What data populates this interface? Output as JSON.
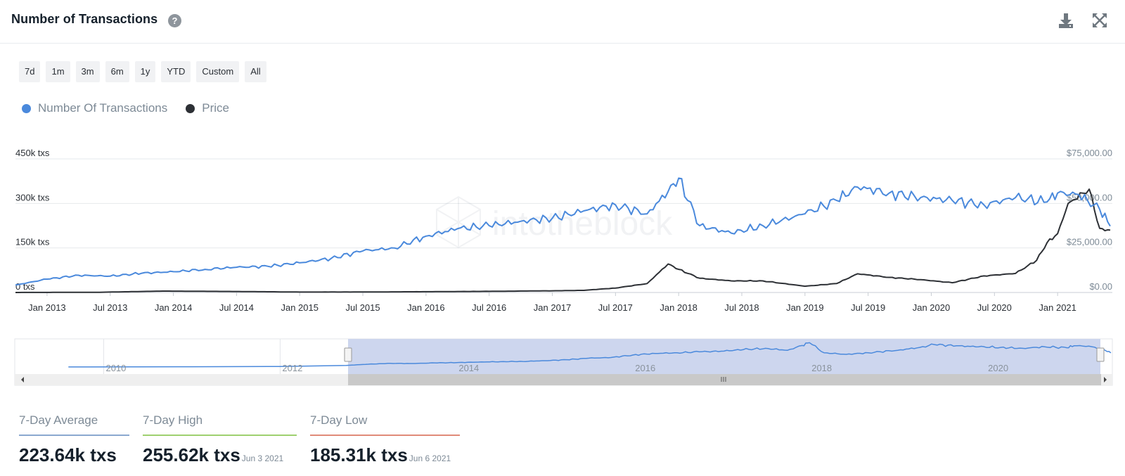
{
  "header": {
    "title": "Number of Transactions",
    "help_icon": "question-circle-icon",
    "download_icon": "download-icon",
    "expand_icon": "fullscreen-icon"
  },
  "range_buttons": [
    "7d",
    "1m",
    "3m",
    "6m",
    "1y",
    "YTD",
    "Custom",
    "All"
  ],
  "legend": [
    {
      "label": "Number Of Transactions",
      "color": "#4a89dc"
    },
    {
      "label": "Price",
      "color": "#2d3035"
    }
  ],
  "chart_data": {
    "type": "line",
    "title": "Number of Transactions",
    "x_tick_labels": [
      "Jan 2013",
      "Jul 2013",
      "Jan 2014",
      "Jul 2014",
      "Jan 2015",
      "Jul 2015",
      "Jan 2016",
      "Jul 2016",
      "Jan 2017",
      "Jul 2017",
      "Jan 2018",
      "Jul 2018",
      "Jan 2019",
      "Jul 2019",
      "Jan 2020",
      "Jul 2020",
      "Jan 2021"
    ],
    "left_axis": {
      "ticks": [
        "0 txs",
        "150k txs",
        "300k txs",
        "450k txs"
      ],
      "range": [
        0,
        450000
      ]
    },
    "right_axis": {
      "ticks": [
        "$0.00",
        "$25,000.00",
        "$50,000.00",
        "$75,000.00"
      ],
      "range": [
        0,
        75000
      ]
    },
    "grid": true,
    "legend_position": "top-left",
    "series": [
      {
        "name": "Number Of Transactions",
        "axis": "left",
        "color": "#4a89dc",
        "x": [
          "2012-10",
          "2013-01",
          "2013-04",
          "2013-07",
          "2013-10",
          "2014-01",
          "2014-04",
          "2014-07",
          "2014-10",
          "2015-01",
          "2015-04",
          "2015-07",
          "2015-10",
          "2016-01",
          "2016-04",
          "2016-07",
          "2016-10",
          "2017-01",
          "2017-04",
          "2017-07",
          "2017-10",
          "2017-12",
          "2018-01",
          "2018-03",
          "2018-06",
          "2018-09",
          "2019-01",
          "2019-04",
          "2019-06",
          "2019-09",
          "2019-12",
          "2020-03",
          "2020-06",
          "2020-09",
          "2020-12",
          "2021-01",
          "2021-03",
          "2021-05",
          "2021-06"
        ],
        "values": [
          25000,
          45000,
          58000,
          55000,
          65000,
          70000,
          78000,
          85000,
          88000,
          100000,
          115000,
          140000,
          150000,
          190000,
          215000,
          225000,
          240000,
          250000,
          275000,
          295000,
          265000,
          340000,
          385000,
          225000,
          200000,
          225000,
          265000,
          310000,
          355000,
          335000,
          320000,
          310000,
          295000,
          320000,
          305000,
          335000,
          330000,
          280000,
          223640
        ]
      },
      {
        "name": "Price",
        "axis": "right",
        "color": "#2d3035",
        "x": [
          "2012-10",
          "2013-06",
          "2013-12",
          "2014-06",
          "2015-01",
          "2015-07",
          "2016-01",
          "2016-07",
          "2017-01",
          "2017-04",
          "2017-07",
          "2017-10",
          "2017-12",
          "2018-01",
          "2018-03",
          "2018-06",
          "2018-09",
          "2019-01",
          "2019-04",
          "2019-06",
          "2019-09",
          "2019-12",
          "2020-03",
          "2020-06",
          "2020-09",
          "2020-11",
          "2020-12",
          "2021-01",
          "2021-02",
          "2021-04",
          "2021-05",
          "2021-06"
        ],
        "values": [
          12,
          120,
          800,
          600,
          250,
          260,
          430,
          650,
          950,
          1200,
          2500,
          5000,
          16000,
          13000,
          8000,
          6500,
          6500,
          3500,
          5000,
          10500,
          8500,
          7200,
          5500,
          9300,
          10700,
          18000,
          28000,
          33000,
          50000,
          58000,
          36000,
          35000
        ]
      }
    ]
  },
  "navigator": {
    "year_labels": [
      "2010",
      "2012",
      "2014",
      "2016",
      "2018",
      "2020"
    ]
  },
  "stats": [
    {
      "label": "7-Day Average",
      "value": "223.64k txs",
      "date": "",
      "color": "#8aa8cf"
    },
    {
      "label": "7-Day High",
      "value": "255.62k txs",
      "date": "Jun 3 2021",
      "color": "#9ed06f"
    },
    {
      "label": "7-Day Low",
      "value": "185.31k txs",
      "date": "Jun 6 2021",
      "color": "#e08a78"
    }
  ]
}
